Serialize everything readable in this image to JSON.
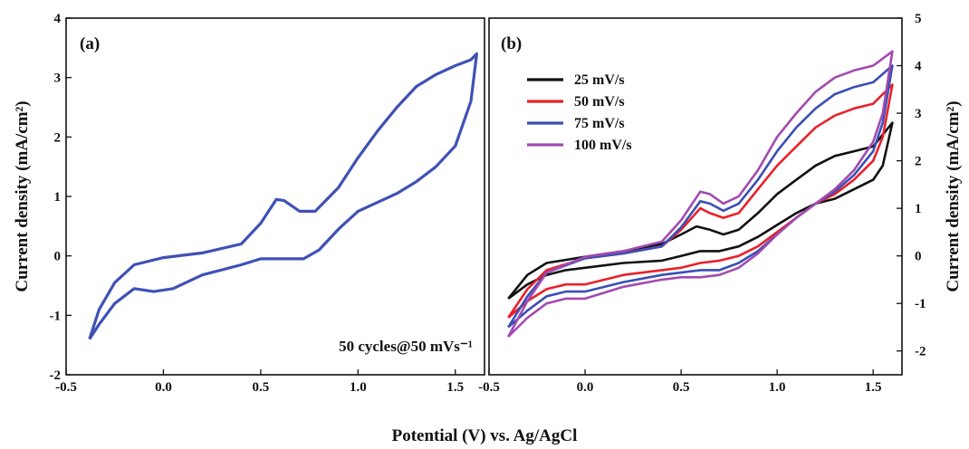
{
  "chart_data": [
    {
      "panel": "(a)",
      "type": "line",
      "xlabel": "Potential (V) vs. Ag/AgCl",
      "ylabel": "Current density (mA/cm²)",
      "xlim": [
        -0.5,
        1.65
      ],
      "ylim": [
        -2,
        4
      ],
      "xticks": [
        -0.5,
        0.0,
        0.5,
        1.0,
        1.5
      ],
      "xtick_labels": [
        "-0.5",
        "0.0",
        "0.5",
        "1.0",
        "1.5"
      ],
      "yticks": [
        -2,
        -1,
        0,
        1,
        2,
        3,
        4
      ],
      "ytick_labels": [
        "-2",
        "-1",
        "0",
        "1",
        "2",
        "3",
        "4"
      ],
      "annotation": "50 cycles@50 mVs⁻¹",
      "series": [
        {
          "color": "#3f51b5",
          "anodic": [
            [
              -0.38,
              -1.4
            ],
            [
              -0.33,
              -0.9
            ],
            [
              -0.25,
              -0.45
            ],
            [
              -0.15,
              -0.15
            ],
            [
              0.0,
              -0.03
            ],
            [
              0.2,
              0.05
            ],
            [
              0.4,
              0.2
            ],
            [
              0.5,
              0.55
            ],
            [
              0.58,
              0.95
            ],
            [
              0.62,
              0.93
            ],
            [
              0.7,
              0.75
            ],
            [
              0.78,
              0.75
            ],
            [
              0.9,
              1.15
            ],
            [
              1.0,
              1.65
            ],
            [
              1.1,
              2.1
            ],
            [
              1.2,
              2.5
            ],
            [
              1.3,
              2.85
            ],
            [
              1.4,
              3.05
            ],
            [
              1.5,
              3.2
            ],
            [
              1.58,
              3.3
            ],
            [
              1.61,
              3.4
            ]
          ],
          "cathodic": [
            [
              1.61,
              3.4
            ],
            [
              1.58,
              2.6
            ],
            [
              1.5,
              1.85
            ],
            [
              1.4,
              1.5
            ],
            [
              1.3,
              1.25
            ],
            [
              1.2,
              1.05
            ],
            [
              1.1,
              0.9
            ],
            [
              1.0,
              0.75
            ],
            [
              0.9,
              0.45
            ],
            [
              0.8,
              0.1
            ],
            [
              0.72,
              -0.05
            ],
            [
              0.6,
              -0.05
            ],
            [
              0.5,
              -0.05
            ],
            [
              0.4,
              -0.15
            ],
            [
              0.2,
              -0.32
            ],
            [
              0.05,
              -0.55
            ],
            [
              -0.05,
              -0.6
            ],
            [
              -0.15,
              -0.55
            ],
            [
              -0.25,
              -0.8
            ],
            [
              -0.33,
              -1.15
            ],
            [
              -0.38,
              -1.4
            ]
          ]
        }
      ]
    },
    {
      "panel": "(b)",
      "type": "line",
      "xlabel": "Potential (V) vs. Ag/AgCl",
      "ylabel": "Current density (mA/cm²)",
      "xlim": [
        -0.5,
        1.65
      ],
      "ylim": [
        -2.5,
        5
      ],
      "xticks": [
        -0.5,
        0.0,
        0.5,
        1.0,
        1.5
      ],
      "xtick_labels": [
        "-0.5",
        "0.0",
        "0.5",
        "1.0",
        "1.5"
      ],
      "yticks": [
        -2,
        -1,
        0,
        1,
        2,
        3,
        4,
        5
      ],
      "ytick_labels": [
        "-2",
        "-1",
        "0",
        "1",
        "2",
        "3",
        "4",
        "5"
      ],
      "legend_position": "top-left",
      "series": [
        {
          "name": "25 mV/s",
          "color": "#111111",
          "anodic": [
            [
              -0.4,
              -0.9
            ],
            [
              -0.3,
              -0.4
            ],
            [
              -0.2,
              -0.15
            ],
            [
              0.0,
              -0.02
            ],
            [
              0.2,
              0.1
            ],
            [
              0.4,
              0.25
            ],
            [
              0.5,
              0.45
            ],
            [
              0.58,
              0.62
            ],
            [
              0.65,
              0.55
            ],
            [
              0.72,
              0.45
            ],
            [
              0.8,
              0.55
            ],
            [
              0.9,
              0.9
            ],
            [
              1.0,
              1.3
            ],
            [
              1.1,
              1.6
            ],
            [
              1.2,
              1.9
            ],
            [
              1.3,
              2.1
            ],
            [
              1.4,
              2.2
            ],
            [
              1.5,
              2.3
            ],
            [
              1.6,
              2.8
            ]
          ],
          "cathodic": [
            [
              1.6,
              2.8
            ],
            [
              1.55,
              1.9
            ],
            [
              1.5,
              1.6
            ],
            [
              1.4,
              1.4
            ],
            [
              1.3,
              1.2
            ],
            [
              1.2,
              1.1
            ],
            [
              1.1,
              0.9
            ],
            [
              1.0,
              0.65
            ],
            [
              0.9,
              0.4
            ],
            [
              0.8,
              0.2
            ],
            [
              0.7,
              0.1
            ],
            [
              0.6,
              0.1
            ],
            [
              0.5,
              0.0
            ],
            [
              0.4,
              -0.1
            ],
            [
              0.2,
              -0.15
            ],
            [
              0.0,
              -0.25
            ],
            [
              -0.1,
              -0.3
            ],
            [
              -0.2,
              -0.4
            ],
            [
              -0.3,
              -0.6
            ],
            [
              -0.4,
              -0.9
            ]
          ]
        },
        {
          "name": "50 mV/s",
          "color": "#e8222a",
          "anodic": [
            [
              -0.4,
              -1.3
            ],
            [
              -0.3,
              -0.7
            ],
            [
              -0.2,
              -0.3
            ],
            [
              0.0,
              -0.05
            ],
            [
              0.2,
              0.05
            ],
            [
              0.4,
              0.2
            ],
            [
              0.5,
              0.55
            ],
            [
              0.6,
              1.0
            ],
            [
              0.65,
              0.9
            ],
            [
              0.72,
              0.8
            ],
            [
              0.8,
              0.9
            ],
            [
              0.9,
              1.4
            ],
            [
              1.0,
              1.9
            ],
            [
              1.1,
              2.3
            ],
            [
              1.2,
              2.7
            ],
            [
              1.3,
              2.95
            ],
            [
              1.4,
              3.1
            ],
            [
              1.5,
              3.2
            ],
            [
              1.6,
              3.6
            ]
          ],
          "cathodic": [
            [
              1.6,
              3.6
            ],
            [
              1.55,
              2.5
            ],
            [
              1.5,
              2.0
            ],
            [
              1.4,
              1.6
            ],
            [
              1.3,
              1.3
            ],
            [
              1.2,
              1.1
            ],
            [
              1.1,
              0.8
            ],
            [
              1.0,
              0.5
            ],
            [
              0.9,
              0.2
            ],
            [
              0.8,
              0.0
            ],
            [
              0.7,
              -0.1
            ],
            [
              0.6,
              -0.15
            ],
            [
              0.5,
              -0.25
            ],
            [
              0.4,
              -0.3
            ],
            [
              0.2,
              -0.4
            ],
            [
              0.0,
              -0.6
            ],
            [
              -0.1,
              -0.6
            ],
            [
              -0.2,
              -0.7
            ],
            [
              -0.3,
              -0.95
            ],
            [
              -0.4,
              -1.3
            ]
          ]
        },
        {
          "name": "75 mV/s",
          "color": "#3a4fb5",
          "anodic": [
            [
              -0.4,
              -1.5
            ],
            [
              -0.3,
              -0.85
            ],
            [
              -0.2,
              -0.35
            ],
            [
              0.0,
              -0.05
            ],
            [
              0.2,
              0.05
            ],
            [
              0.4,
              0.2
            ],
            [
              0.5,
              0.6
            ],
            [
              0.6,
              1.15
            ],
            [
              0.65,
              1.1
            ],
            [
              0.72,
              0.95
            ],
            [
              0.8,
              1.1
            ],
            [
              0.9,
              1.6
            ],
            [
              1.0,
              2.2
            ],
            [
              1.1,
              2.7
            ],
            [
              1.2,
              3.1
            ],
            [
              1.3,
              3.4
            ],
            [
              1.4,
              3.55
            ],
            [
              1.5,
              3.65
            ],
            [
              1.6,
              4.0
            ]
          ],
          "cathodic": [
            [
              1.6,
              4.0
            ],
            [
              1.55,
              2.8
            ],
            [
              1.5,
              2.2
            ],
            [
              1.4,
              1.7
            ],
            [
              1.3,
              1.35
            ],
            [
              1.2,
              1.1
            ],
            [
              1.1,
              0.8
            ],
            [
              1.0,
              0.45
            ],
            [
              0.9,
              0.1
            ],
            [
              0.8,
              -0.15
            ],
            [
              0.7,
              -0.3
            ],
            [
              0.6,
              -0.3
            ],
            [
              0.5,
              -0.35
            ],
            [
              0.4,
              -0.4
            ],
            [
              0.2,
              -0.55
            ],
            [
              0.0,
              -0.75
            ],
            [
              -0.1,
              -0.75
            ],
            [
              -0.2,
              -0.85
            ],
            [
              -0.3,
              -1.15
            ],
            [
              -0.4,
              -1.5
            ]
          ]
        },
        {
          "name": "100 mV/s",
          "color": "#a24ab0",
          "anodic": [
            [
              -0.4,
              -1.7
            ],
            [
              -0.3,
              -0.95
            ],
            [
              -0.2,
              -0.35
            ],
            [
              0.0,
              -0.02
            ],
            [
              0.2,
              0.1
            ],
            [
              0.4,
              0.3
            ],
            [
              0.5,
              0.75
            ],
            [
              0.6,
              1.35
            ],
            [
              0.65,
              1.3
            ],
            [
              0.72,
              1.1
            ],
            [
              0.8,
              1.25
            ],
            [
              0.9,
              1.8
            ],
            [
              1.0,
              2.5
            ],
            [
              1.1,
              3.0
            ],
            [
              1.2,
              3.45
            ],
            [
              1.3,
              3.75
            ],
            [
              1.4,
              3.9
            ],
            [
              1.5,
              4.0
            ],
            [
              1.6,
              4.3
            ]
          ],
          "cathodic": [
            [
              1.6,
              4.3
            ],
            [
              1.55,
              3.0
            ],
            [
              1.5,
              2.4
            ],
            [
              1.4,
              1.8
            ],
            [
              1.3,
              1.4
            ],
            [
              1.2,
              1.1
            ],
            [
              1.1,
              0.8
            ],
            [
              1.0,
              0.45
            ],
            [
              0.9,
              0.05
            ],
            [
              0.8,
              -0.25
            ],
            [
              0.7,
              -0.4
            ],
            [
              0.6,
              -0.45
            ],
            [
              0.5,
              -0.45
            ],
            [
              0.4,
              -0.5
            ],
            [
              0.2,
              -0.65
            ],
            [
              0.0,
              -0.9
            ],
            [
              -0.1,
              -0.9
            ],
            [
              -0.2,
              -1.0
            ],
            [
              -0.3,
              -1.3
            ],
            [
              -0.4,
              -1.7
            ]
          ]
        }
      ]
    }
  ],
  "shared_xlabel": "Potential (V) vs. Ag/AgCl"
}
